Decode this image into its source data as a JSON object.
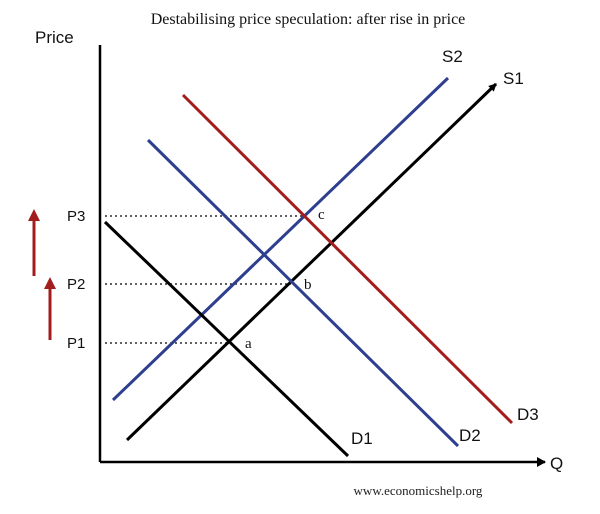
{
  "title": "Destabilising price speculation: after rise in price",
  "axes": {
    "y_label": "Price",
    "x_label": "Q"
  },
  "price_levels": [
    {
      "label": "P3"
    },
    {
      "label": "P2"
    },
    {
      "label": "P1"
    }
  ],
  "curves": [
    {
      "name": "S2",
      "kind": "supply",
      "color": "#2e3f8f"
    },
    {
      "name": "S1",
      "kind": "supply",
      "color": "#000000"
    },
    {
      "name": "D1",
      "kind": "demand",
      "color": "#000000"
    },
    {
      "name": "D2",
      "kind": "demand",
      "color": "#2e3f8f"
    },
    {
      "name": "D3",
      "kind": "demand",
      "color": "#a31d1d"
    }
  ],
  "points": [
    {
      "label": "a"
    },
    {
      "label": "b"
    },
    {
      "label": "c"
    }
  ],
  "arrows": {
    "color": "#a31d1d",
    "direction": "up",
    "count": 2
  },
  "footer": "www.economicshelp.org"
}
